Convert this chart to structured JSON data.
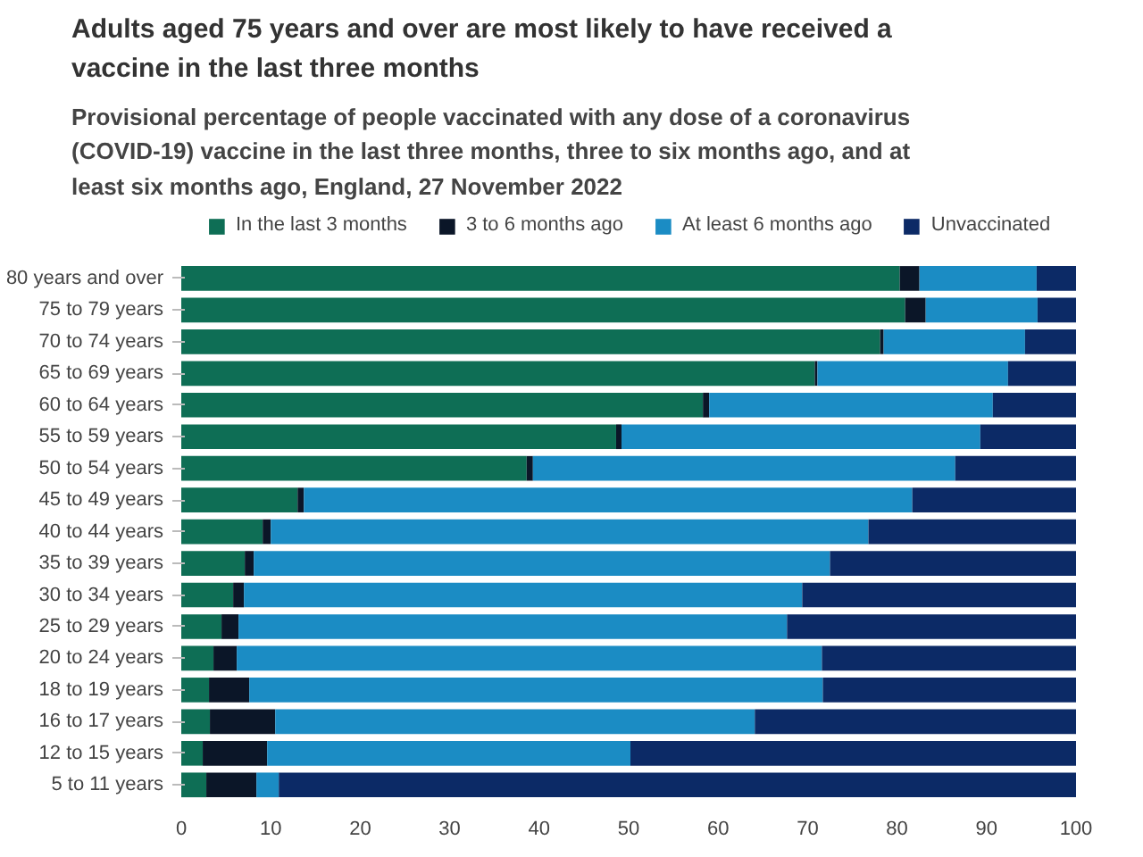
{
  "chart_data": {
    "type": "bar",
    "orientation": "horizontal",
    "stacked": true,
    "title": "Adults aged 75 years and over are most likely to have received a vaccine in the last three months",
    "subtitle": "Provisional percentage of people vaccinated with any dose of a coronavirus (COVID-19) vaccine in the last three months, three to six months ago, and at least six months ago, England, 27 November 2022",
    "categories": [
      "80 years and over",
      "75 to 79 years",
      "70 to 74 years",
      "65 to 69 years",
      "60 to 64 years",
      "55 to 59 years",
      "50 to 54 years",
      "45 to 49 years",
      "40 to 44 years",
      "35 to 39 years",
      "30 to 34 years",
      "25 to 29 years",
      "20 to 24 years",
      "18 to 19 years",
      "16 to 17 years",
      "12 to 15 years",
      "5 to 11 years"
    ],
    "series": [
      {
        "name": "In the last 3 months",
        "color": "#0e6e55",
        "values": [
          80.3,
          80.9,
          78.1,
          70.8,
          58.3,
          48.6,
          38.6,
          13.0,
          9.1,
          7.1,
          5.8,
          4.5,
          3.6,
          3.1,
          3.2,
          2.4,
          2.8
        ]
      },
      {
        "name": "3 to 6 months ago",
        "color": "#0b1628",
        "values": [
          2.2,
          2.3,
          0.4,
          0.3,
          0.7,
          0.6,
          0.7,
          0.7,
          0.9,
          1.0,
          1.2,
          1.9,
          2.6,
          4.5,
          7.3,
          7.2,
          5.6
        ]
      },
      {
        "name": "At least 6 months ago",
        "color": "#1b8cc4",
        "values": [
          13.1,
          12.5,
          15.8,
          21.3,
          31.7,
          40.1,
          47.2,
          68.0,
          66.8,
          64.4,
          62.4,
          61.3,
          65.4,
          64.1,
          53.6,
          40.6,
          2.5
        ]
      },
      {
        "name": "Unvaccinated",
        "color": "#0c2a66",
        "values": [
          4.4,
          4.3,
          5.7,
          7.6,
          9.3,
          10.7,
          13.5,
          18.3,
          23.2,
          27.5,
          30.6,
          32.3,
          28.4,
          28.3,
          35.9,
          49.8,
          89.1
        ]
      }
    ],
    "xlim": [
      0,
      100
    ],
    "xticks": [
      0,
      10,
      20,
      30,
      40,
      50,
      60,
      70,
      80,
      90,
      100
    ],
    "legend": "top",
    "grid": false
  }
}
